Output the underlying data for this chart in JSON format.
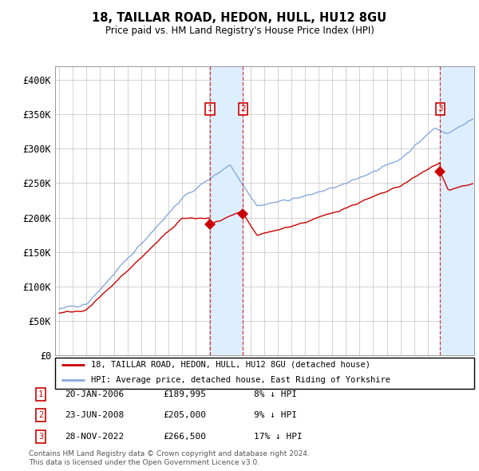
{
  "title": "18, TAILLAR ROAD, HEDON, HULL, HU12 8GU",
  "subtitle": "Price paid vs. HM Land Registry's House Price Index (HPI)",
  "ylim": [
    0,
    420000
  ],
  "yticks": [
    0,
    50000,
    100000,
    150000,
    200000,
    250000,
    300000,
    350000,
    400000
  ],
  "ytick_labels": [
    "£0",
    "£50K",
    "£100K",
    "£150K",
    "£200K",
    "£250K",
    "£300K",
    "£350K",
    "£400K"
  ],
  "xlim_start": 1994.7,
  "xlim_end": 2025.4,
  "sales": [
    {
      "label": 1,
      "year": 2006.05,
      "price": 189995,
      "date_str": "20-JAN-2006",
      "price_str": "£189,995",
      "pct_str": "8% ↓ HPI"
    },
    {
      "label": 2,
      "year": 2008.47,
      "price": 205000,
      "date_str": "23-JUN-2008",
      "price_str": "£205,000",
      "pct_str": "9% ↓ HPI"
    },
    {
      "label": 3,
      "year": 2022.91,
      "price": 266500,
      "date_str": "28-NOV-2022",
      "price_str": "£266,500",
      "pct_str": "17% ↓ HPI"
    }
  ],
  "legend_line1": "18, TAILLAR ROAD, HEDON, HULL, HU12 8GU (detached house)",
  "legend_line2": "HPI: Average price, detached house, East Riding of Yorkshire",
  "footer1": "Contains HM Land Registry data © Crown copyright and database right 2024.",
  "footer2": "This data is licensed under the Open Government Licence v3.0.",
  "red_color": "#cc0000",
  "blue_color": "#88aadd",
  "shade_color": "#ddeeff",
  "grid_color": "#cccccc"
}
